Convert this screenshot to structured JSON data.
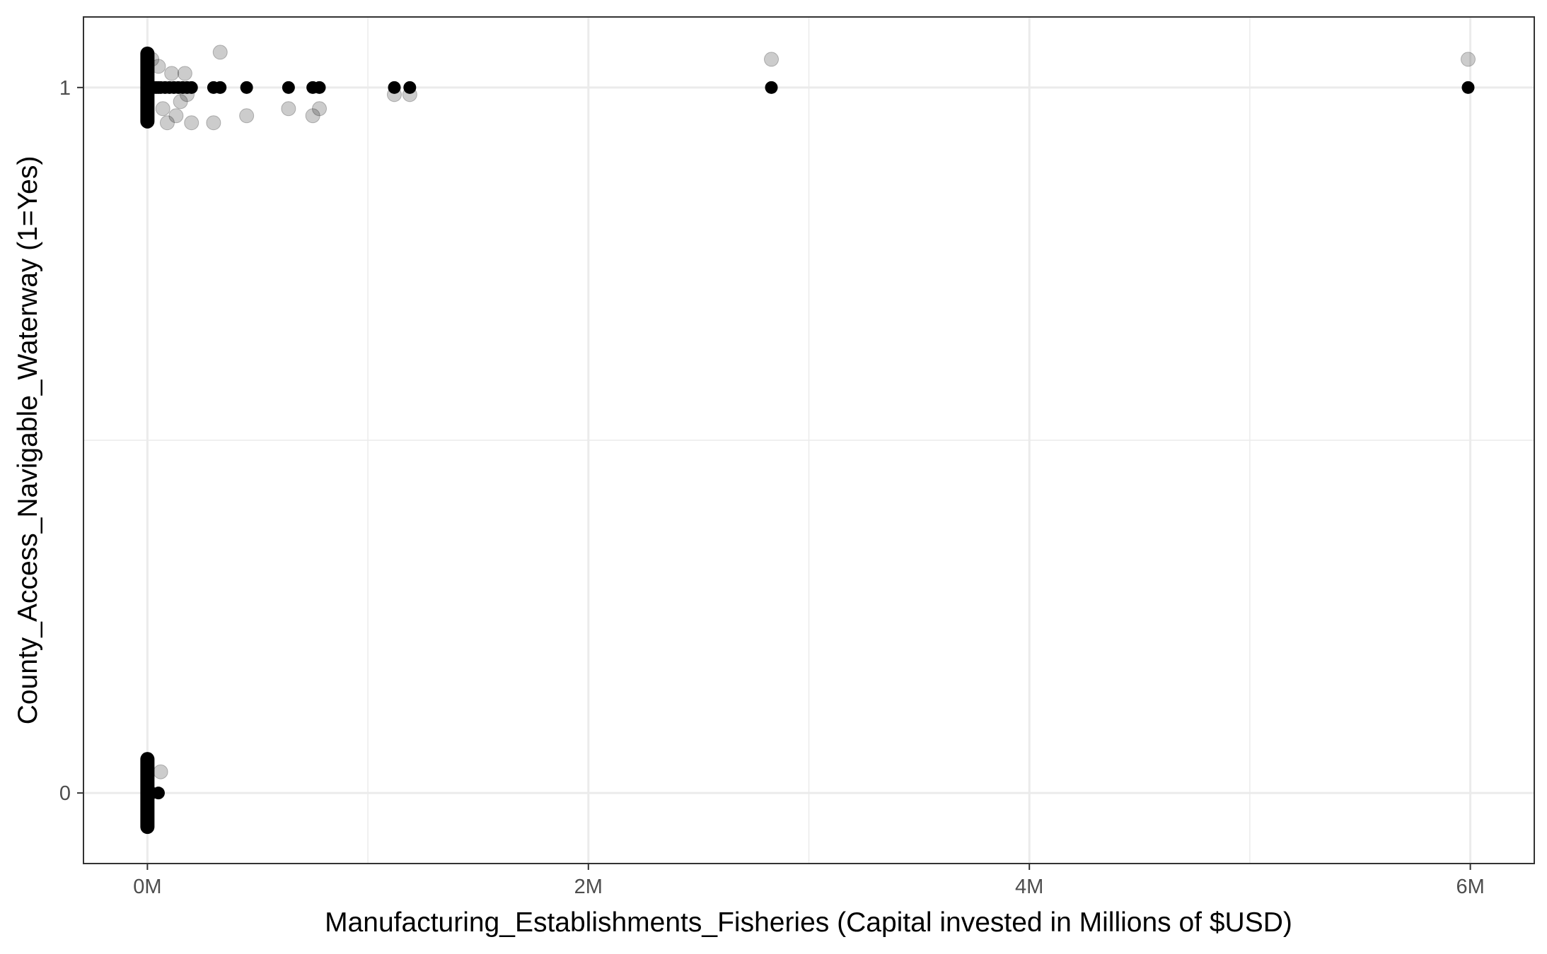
{
  "chart_data": {
    "type": "scatter",
    "title": "",
    "xlabel": "Manufacturing_Establishments_Fisheries (Capital invested in Millions of $USD)",
    "ylabel": "County_Access_Navigable_Waterway (1=Yes)",
    "xlim": [
      -0.29,
      6.29
    ],
    "ylim": [
      -0.1,
      1.1
    ],
    "x_ticks": [
      0,
      2,
      4,
      6
    ],
    "x_tick_labels": [
      "0M",
      "2M",
      "4M",
      "6M"
    ],
    "y_ticks": [
      0,
      1
    ],
    "y_tick_labels": [
      "0",
      "1"
    ],
    "grid": true,
    "legend": "none",
    "colors": {
      "points": "#000000",
      "jittered_points": "#bfbfbf",
      "grid": "#ebebeb",
      "panel_border": "#333333"
    },
    "series": [
      {
        "values_x": [
          0,
          0.01,
          0.02,
          0.03,
          0.04,
          0.05,
          0.06,
          0.08,
          0.1,
          0.12,
          0.14,
          0.16,
          0.18,
          0.2,
          0.3,
          0.33,
          0.45,
          0.64,
          0.75,
          0.78,
          1.12,
          1.19,
          2.83,
          5.99
        ],
        "values_y": [
          1,
          1,
          1,
          1,
          1,
          1,
          1,
          1,
          1,
          1,
          1,
          1,
          1,
          1,
          1,
          1,
          1,
          1,
          1,
          1,
          1,
          1,
          1,
          1
        ]
      },
      {
        "values_x": [
          0,
          0.01,
          0.02,
          0.05
        ],
        "values_y": [
          0,
          0,
          0,
          0
        ]
      },
      {
        "values_x": [
          0.02,
          0.05,
          0.07,
          0.09,
          0.11,
          0.13,
          0.15,
          0.17,
          0.18,
          0.2,
          0.3,
          0.33,
          0.45,
          0.64,
          0.75,
          0.78,
          1.12,
          1.19,
          2.83,
          5.99,
          0.06
        ],
        "values_y": [
          1.04,
          1.03,
          0.97,
          0.95,
          1.02,
          0.96,
          0.98,
          1.02,
          0.99,
          0.95,
          0.95,
          1.05,
          0.96,
          0.97,
          0.96,
          0.97,
          0.99,
          0.99,
          1.04,
          1.04,
          0.03
        ]
      }
    ]
  }
}
